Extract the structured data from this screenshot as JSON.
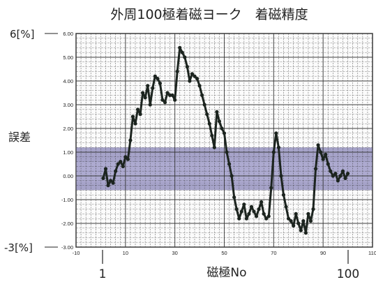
{
  "chart_data": {
    "type": "line",
    "title": "外周100極着磁ヨーク　着磁精度",
    "ylabel": "誤差",
    "xlabel": "磁極No",
    "xlim": [
      -10,
      110
    ],
    "ylim": [
      -3,
      6
    ],
    "x_ticks": [
      "-10",
      "10",
      "30",
      "50",
      "70",
      "90",
      "110"
    ],
    "y_ticks": [
      "-3.00",
      "-2.00",
      "-1.00",
      "0.00",
      "1.00",
      "2.00",
      "3.00",
      "4.00",
      "5.00",
      "6.00"
    ],
    "y_outer_labels": {
      "top": "6[%]",
      "bottom": "-3[%]"
    },
    "x_outer_labels": {
      "first": "1",
      "last": "100"
    },
    "tolerance_band": [
      -0.6,
      1.2
    ],
    "grid": true,
    "series_color": "#1c241f",
    "band_color": "#8a86b8",
    "x": [
      1,
      2,
      3,
      4,
      5,
      6,
      7,
      8,
      9,
      10,
      11,
      12,
      13,
      14,
      15,
      16,
      17,
      18,
      19,
      20,
      21,
      22,
      23,
      24,
      25,
      26,
      27,
      28,
      29,
      30,
      31,
      32,
      33,
      34,
      35,
      36,
      37,
      38,
      39,
      40,
      41,
      42,
      43,
      44,
      45,
      46,
      47,
      48,
      49,
      50,
      51,
      52,
      53,
      54,
      55,
      56,
      57,
      58,
      59,
      60,
      61,
      62,
      63,
      64,
      65,
      66,
      67,
      68,
      69,
      70,
      71,
      72,
      73,
      74,
      75,
      76,
      77,
      78,
      79,
      80,
      81,
      82,
      83,
      84,
      85,
      86,
      87,
      88,
      89,
      90,
      91,
      92,
      93,
      94,
      95,
      96,
      97,
      98,
      99,
      100
    ],
    "y": [
      -0.1,
      0.3,
      -0.4,
      -0.2,
      -0.3,
      0.2,
      0.5,
      0.6,
      0.4,
      0.8,
      0.7,
      1.5,
      2.5,
      2.2,
      2.8,
      2.6,
      3.5,
      3.3,
      3.8,
      3.0,
      3.7,
      4.2,
      4.1,
      3.9,
      3.2,
      3.1,
      3.5,
      3.4,
      3.4,
      3.2,
      4.4,
      5.4,
      5.2,
      5.0,
      4.6,
      4.0,
      4.3,
      4.2,
      4.1,
      3.8,
      3.4,
      3.0,
      2.6,
      2.2,
      1.7,
      1.2,
      2.7,
      2.3,
      2.0,
      1.8,
      1.0,
      0.5,
      0.0,
      -0.9,
      -1.4,
      -1.8,
      -1.5,
      -1.2,
      -1.8,
      -1.6,
      -1.3,
      -1.5,
      -1.7,
      -1.4,
      -1.1,
      -1.6,
      -1.8,
      -1.7,
      -0.5,
      1.0,
      1.8,
      1.2,
      0.0,
      -0.8,
      -1.3,
      -1.8,
      -1.9,
      -2.1,
      -1.6,
      -2.0,
      -2.3,
      -1.9,
      -2.4,
      -1.6,
      -1.9,
      -1.4,
      0.3,
      1.3,
      1.0,
      0.7,
      0.9,
      0.5,
      0.2,
      0.0,
      0.1,
      -0.2,
      0.0,
      0.2,
      -0.1,
      0.1
    ]
  }
}
